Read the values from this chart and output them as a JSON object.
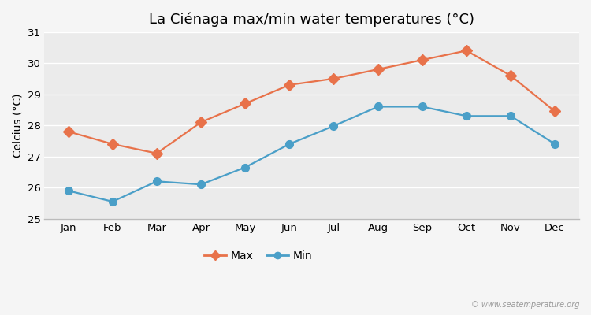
{
  "title": "La Ciénaga max/min water temperatures (°C)",
  "xlabel": "",
  "ylabel": "Celcius (°C)",
  "months": [
    "Jan",
    "Feb",
    "Mar",
    "Apr",
    "May",
    "Jun",
    "Jul",
    "Aug",
    "Sep",
    "Oct",
    "Nov",
    "Dec"
  ],
  "max_values": [
    27.8,
    27.4,
    27.1,
    28.1,
    28.7,
    29.3,
    29.5,
    29.8,
    30.1,
    30.4,
    29.6,
    28.45
  ],
  "min_values": [
    25.9,
    25.55,
    26.2,
    26.1,
    26.65,
    27.4,
    27.98,
    28.6,
    28.6,
    28.3,
    28.3,
    27.4
  ],
  "max_color": "#e8724a",
  "min_color": "#4a9fc8",
  "fig_bg_color": "#f5f5f5",
  "plot_bg_color": "#ebebeb",
  "grid_color": "#ffffff",
  "ylim": [
    25,
    31
  ],
  "yticks": [
    25,
    26,
    27,
    28,
    29,
    30,
    31
  ],
  "watermark": "© www.seatemperature.org",
  "title_fontsize": 13,
  "axis_label_fontsize": 10,
  "tick_fontsize": 9.5
}
